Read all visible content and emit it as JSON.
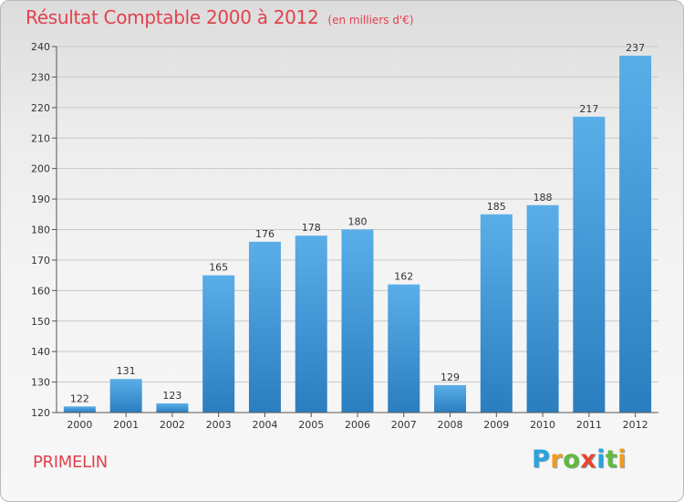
{
  "chart_data": {
    "type": "bar",
    "title": "Résultat Comptable 2000 à 2012",
    "subtitle": "(en milliers d'€)",
    "categories": [
      "2000",
      "2001",
      "2002",
      "2003",
      "2004",
      "2005",
      "2006",
      "2007",
      "2008",
      "2009",
      "2010",
      "2011",
      "2012"
    ],
    "values": [
      122,
      131,
      123,
      165,
      176,
      178,
      180,
      162,
      129,
      185,
      188,
      217,
      237
    ],
    "ylim": [
      120,
      240
    ],
    "yticks": [
      120,
      130,
      140,
      150,
      160,
      170,
      180,
      190,
      200,
      210,
      220,
      230,
      240
    ],
    "grid": true,
    "xlabel": "",
    "ylabel": "",
    "bar_color_top": "#5aaee8",
    "bar_color_bottom": "#2a7ebf"
  },
  "footer": {
    "commune": "PRIMELIN",
    "brand": [
      "P",
      "r",
      "o",
      "x",
      "i",
      "t",
      "i"
    ],
    "brand_colors": [
      "#2aa3de",
      "#f39a1d",
      "#62b93b",
      "#e8452f",
      "#2aa3de",
      "#62b93b",
      "#f39a1d"
    ]
  },
  "colors": {
    "title": "#e1424d",
    "grid": "#c8c8c8",
    "axis": "#555555"
  }
}
